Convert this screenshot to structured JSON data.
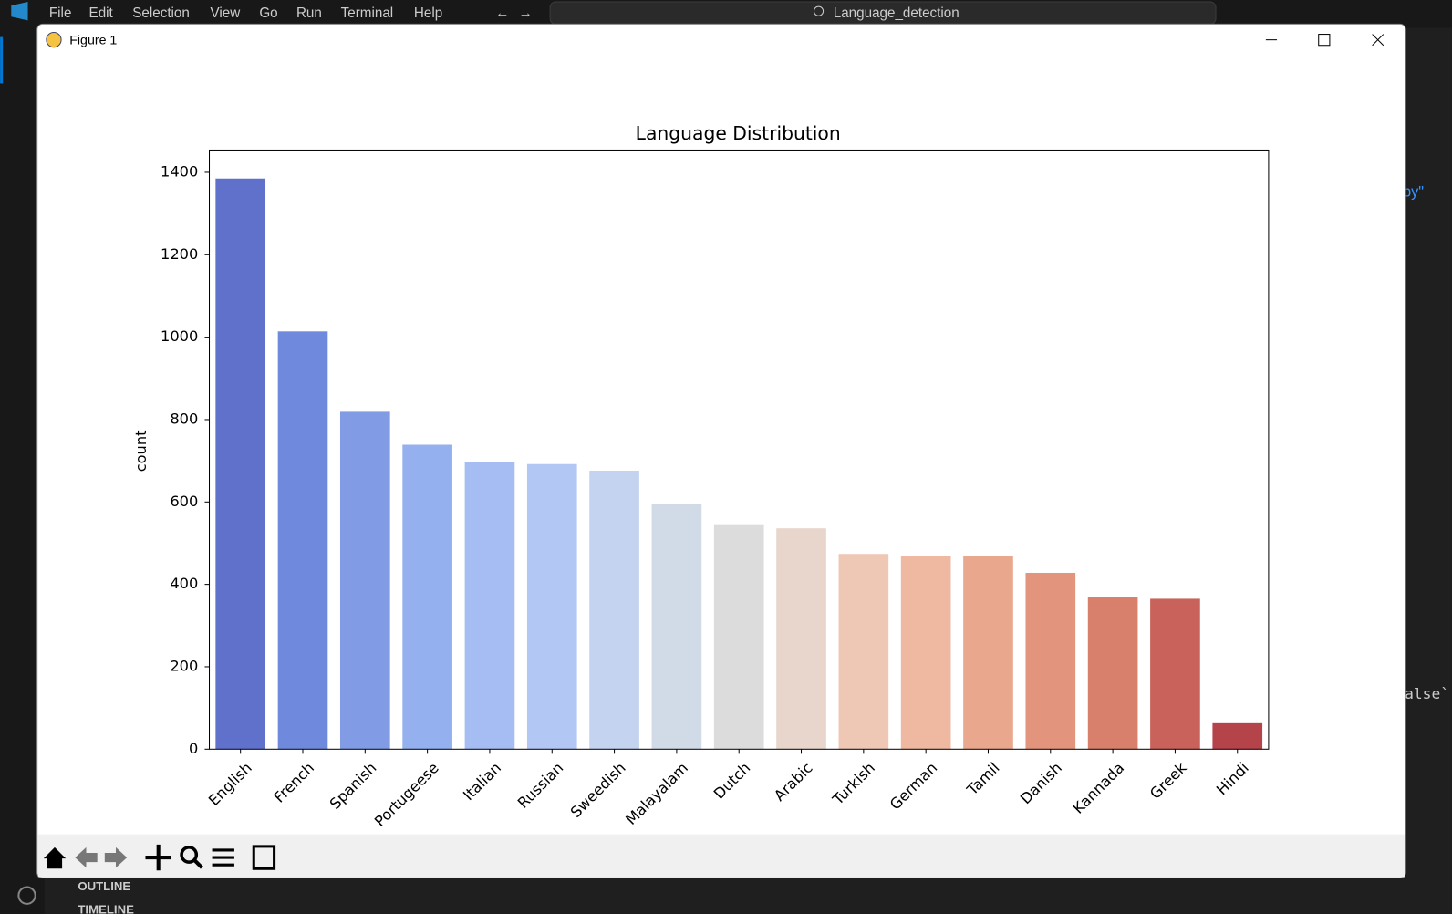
{
  "app": {
    "menu": [
      "File",
      "Edit",
      "Selection",
      "View",
      "Go",
      "Run",
      "Terminal",
      "Help"
    ],
    "search": "Language_detection",
    "sidebar_sections": [
      "OUTLINE",
      "TIMELINE"
    ],
    "editor_fragments": [
      "py\"",
      "alse`"
    ]
  },
  "window": {
    "title": "Figure 1"
  },
  "chart_data": {
    "type": "bar",
    "title": "Language Distribution",
    "y_label": "count",
    "categories": [
      "English",
      "French",
      "Spanish",
      "Portugeese",
      "Italian",
      "Russian",
      "Sweedish",
      "Malayalam",
      "Dutch",
      "Arabic",
      "Turkish",
      "German",
      "Tamil",
      "Danish",
      "Kannada",
      "Greek",
      "Hindi"
    ],
    "values": [
      1385,
      1014,
      819,
      739,
      698,
      692,
      676,
      594,
      546,
      536,
      474,
      470,
      469,
      428,
      369,
      365,
      63
    ],
    "colors": [
      "#5f71cb",
      "#6f89dc",
      "#819ce4",
      "#94b0ee",
      "#a5bdf3",
      "#b3c7f5",
      "#c4d3f0",
      "#d1dbe8",
      "#dcdcdc",
      "#e8d6cc",
      "#efc8b5",
      "#eeb9a0",
      "#e9a88e",
      "#e2957c",
      "#d8806c",
      "#c8625a",
      "#b5434a"
    ],
    "ylim": [
      0,
      1454.25
    ],
    "yticks": [
      0,
      200,
      400,
      600,
      800,
      1000,
      1200,
      1400
    ],
    "grid": false
  }
}
